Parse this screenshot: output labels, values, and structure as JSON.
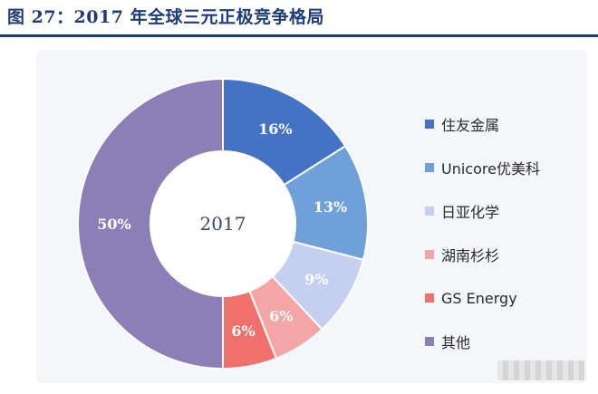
{
  "title": "图 27：2017 年全球三元正极竞争格局",
  "colors": {
    "title": "#1f3c78",
    "label_dark": "#ffffff",
    "center_text": "#3a4a6a"
  },
  "chart_data": {
    "type": "pie",
    "donut": true,
    "center_label": "2017",
    "legend_position": "right",
    "slices": [
      {
        "label": "住友金属",
        "value": 16,
        "value_label": "16%",
        "color": "#4472c4"
      },
      {
        "label": "Unicore优美科",
        "value": 13,
        "value_label": "13%",
        "color": "#70a0da"
      },
      {
        "label": "日亚化学",
        "value": 9,
        "value_label": "9%",
        "color": "#c5cff0"
      },
      {
        "label": "湖南杉杉",
        "value": 6,
        "value_label": "6%",
        "color": "#f4a6a6"
      },
      {
        "label": "GS Energy",
        "value": 6,
        "value_label": "6%",
        "color": "#f0706c"
      },
      {
        "label": "其他",
        "value": 50,
        "value_label": "50%",
        "color": "#8c7fb8"
      }
    ]
  }
}
